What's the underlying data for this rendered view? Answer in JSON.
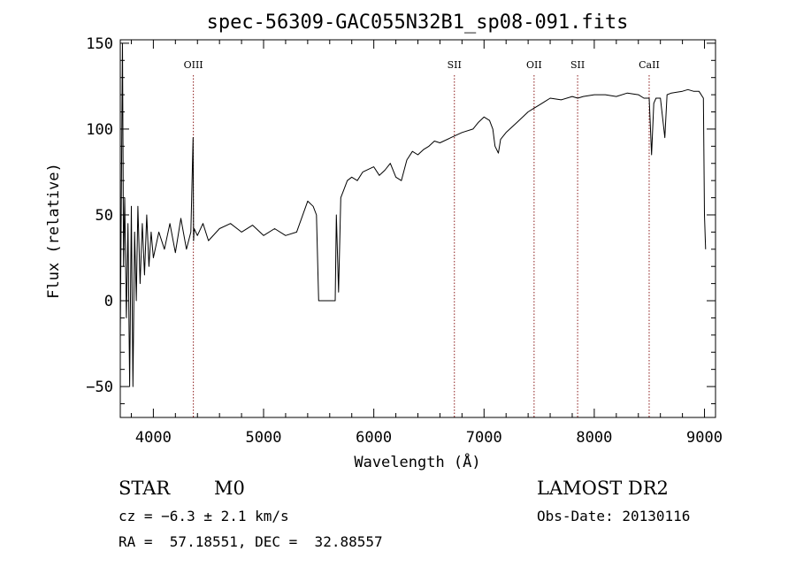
{
  "chart_data": {
    "type": "line",
    "title": "spec-56309-GAC055N32B1_sp08-091.fits",
    "xlabel": "Wavelength (Å)",
    "ylabel": "Flux (relative)",
    "xlim": [
      3700,
      9100
    ],
    "ylim": [
      -68,
      152
    ],
    "xticks": [
      4000,
      5000,
      6000,
      7000,
      8000,
      9000
    ],
    "yticks": [
      -50,
      0,
      50,
      100,
      150
    ],
    "grid": false,
    "line_color": "#000000",
    "marker_color": "#8b1a1a",
    "lines": [
      {
        "name": "OIII",
        "x": 4363
      },
      {
        "name": "SII",
        "x": 6731
      },
      {
        "name": "OII",
        "x": 7454
      },
      {
        "name": "SII",
        "x": 7849
      },
      {
        "name": "CaII",
        "x": 8498
      }
    ],
    "series": [
      {
        "x": [
          3700,
          3720,
          3730,
          3740,
          3755,
          3770,
          3785,
          3800,
          3815,
          3830,
          3845,
          3860,
          3880,
          3900,
          3920,
          3940,
          3960,
          3980,
          4000,
          4050,
          4100,
          4150,
          4200,
          4250,
          4300,
          4340,
          4360,
          4365,
          4370,
          4400,
          4450,
          4500,
          4600,
          4700,
          4800,
          4900,
          5000,
          5100,
          5200,
          5300,
          5400,
          5450,
          5480,
          5500,
          5540,
          5600,
          5650,
          5660,
          5680,
          5700,
          5730,
          5760,
          5800,
          5850,
          5900,
          6000,
          6050,
          6100,
          6150,
          6200,
          6250,
          6300,
          6350,
          6400,
          6450,
          6500,
          6550,
          6600,
          6700,
          6800,
          6900,
          6950,
          7000,
          7050,
          7080,
          7100,
          7130,
          7150,
          7200,
          7300,
          7400,
          7450,
          7500,
          7550,
          7600,
          7700,
          7800,
          7850,
          7900,
          8000,
          8100,
          8200,
          8300,
          8400,
          8450,
          8498,
          8520,
          8540,
          8560,
          8600,
          8640,
          8660,
          8700,
          8800,
          8850,
          8900,
          8950,
          8990,
          9000,
          9010
        ],
        "y": [
          -20,
          150,
          20,
          60,
          -10,
          45,
          -50,
          55,
          -50,
          40,
          0,
          55,
          10,
          45,
          15,
          50,
          20,
          40,
          25,
          40,
          30,
          45,
          28,
          48,
          30,
          40,
          95,
          35,
          42,
          38,
          45,
          35,
          42,
          45,
          40,
          44,
          38,
          42,
          38,
          40,
          58,
          55,
          50,
          0,
          0,
          0,
          0,
          50,
          5,
          60,
          65,
          70,
          72,
          70,
          75,
          78,
          73,
          76,
          80,
          72,
          70,
          82,
          87,
          85,
          88,
          90,
          93,
          92,
          95,
          98,
          100,
          104,
          107,
          105,
          100,
          90,
          86,
          94,
          98,
          104,
          110,
          112,
          114,
          116,
          118,
          117,
          119,
          118,
          119,
          120,
          120,
          119,
          121,
          120,
          118,
          118,
          85,
          115,
          118,
          118,
          95,
          120,
          121,
          122,
          123,
          122,
          122,
          118,
          50,
          30
        ]
      }
    ]
  },
  "info": {
    "class": "STAR",
    "subclass": "M0",
    "velocity": "cz = −6.3 ± 2.1 km/s",
    "coords": "RA =  57.18551, DEC =  32.88557",
    "survey": "LAMOST DR2",
    "obs_date": "Obs-Date: 20130116"
  }
}
